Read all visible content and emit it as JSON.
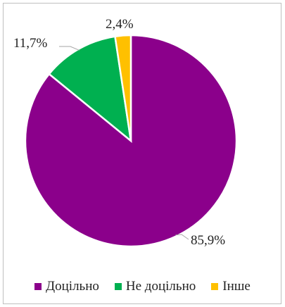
{
  "chart_data": {
    "type": "pie",
    "categories": [
      "Доцільно",
      "Не доцільно",
      "Інше"
    ],
    "values": [
      85.9,
      11.7,
      2.4
    ],
    "labels": [
      "85,9%",
      "11,7%",
      "2,4%"
    ],
    "colors": [
      "#8B008B",
      "#00B050",
      "#FFC000"
    ],
    "legend_position": "bottom"
  },
  "legend": [
    {
      "label": "Доцільно",
      "color": "#8B008B"
    },
    {
      "label": "Не доцільно",
      "color": "#00B050"
    },
    {
      "label": "Інше",
      "color": "#FFC000"
    }
  ]
}
